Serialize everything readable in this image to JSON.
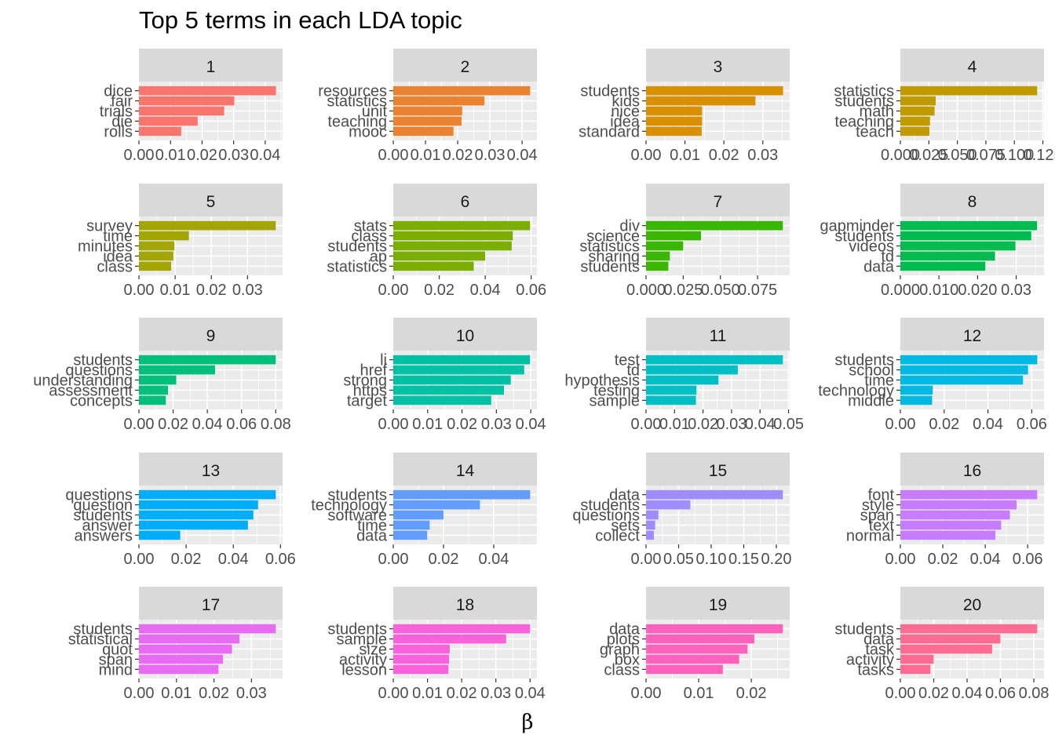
{
  "chart_data": {
    "type": "bar",
    "orientation": "horizontal",
    "title": "Top 5 terms in each LDA topic",
    "xlabel": "β",
    "ylabel": "",
    "grid": true,
    "legend": "none",
    "facets": [
      {
        "topic": "1",
        "color": "#F8766D",
        "terms": [
          "dice",
          "fair",
          "trials",
          "die",
          "rolls"
        ],
        "values": [
          0.0434,
          0.0302,
          0.027,
          0.0186,
          0.0134
        ],
        "xlim": [
          0,
          0.0455
        ],
        "ticks": [
          0,
          0.01,
          0.02,
          0.03,
          0.04
        ],
        "tick_labels": [
          "0.00",
          "0.01",
          "0.02",
          "0.03",
          "0.04"
        ]
      },
      {
        "topic": "2",
        "color": "#EA8331",
        "terms": [
          "resources",
          "statistics",
          "unit",
          "teaching",
          "mooc"
        ],
        "values": [
          0.0425,
          0.0283,
          0.0214,
          0.0212,
          0.0187
        ],
        "xlim": [
          0,
          0.0446
        ],
        "ticks": [
          0,
          0.01,
          0.02,
          0.03,
          0.04
        ],
        "tick_labels": [
          "0.00",
          "0.01",
          "0.02",
          "0.03",
          "0.04"
        ]
      },
      {
        "topic": "3",
        "color": "#D89000",
        "terms": [
          "students",
          "kids",
          "nice",
          "idea",
          "standard"
        ],
        "values": [
          0.0352,
          0.0281,
          0.0144,
          0.0144,
          0.0143
        ],
        "xlim": [
          0,
          0.0369
        ],
        "ticks": [
          0,
          0.01,
          0.02,
          0.03
        ],
        "tick_labels": [
          "0.00",
          "0.01",
          "0.02",
          "0.03"
        ]
      },
      {
        "topic": "4",
        "color": "#C09B00",
        "terms": [
          "statistics",
          "students",
          "math",
          "teaching",
          "teach"
        ],
        "values": [
          0.12,
          0.031,
          0.03,
          0.026,
          0.0255
        ],
        "xlim": [
          0,
          0.126
        ],
        "ticks": [
          0,
          0.025,
          0.05,
          0.075,
          0.1,
          0.125
        ],
        "tick_labels": [
          "0.000",
          "0.025",
          "0.050",
          "0.075",
          "0.100",
          "0.125"
        ]
      },
      {
        "topic": "5",
        "color": "#A3A500",
        "terms": [
          "survey",
          "time",
          "minutes",
          "idea",
          "class"
        ],
        "values": [
          0.0378,
          0.0138,
          0.0098,
          0.0095,
          0.0089
        ],
        "xlim": [
          0,
          0.0397
        ],
        "ticks": [
          0,
          0.01,
          0.02,
          0.03
        ],
        "tick_labels": [
          "0.00",
          "0.01",
          "0.02",
          "0.03"
        ]
      },
      {
        "topic": "6",
        "color": "#7CAE00",
        "terms": [
          "stats",
          "class",
          "students",
          "ap",
          "statistics"
        ],
        "values": [
          0.0595,
          0.052,
          0.0515,
          0.04,
          0.035
        ],
        "xlim": [
          0,
          0.0625
        ],
        "ticks": [
          0,
          0.02,
          0.04,
          0.06
        ],
        "tick_labels": [
          "0.00",
          "0.02",
          "0.04",
          "0.06"
        ]
      },
      {
        "topic": "7",
        "color": "#39B600",
        "terms": [
          "div",
          "science",
          "statistics",
          "sharing",
          "students"
        ],
        "values": [
          0.092,
          0.037,
          0.025,
          0.016,
          0.015
        ],
        "xlim": [
          0,
          0.0966
        ],
        "ticks": [
          0,
          0.025,
          0.05,
          0.075
        ],
        "tick_labels": [
          "0.000",
          "0.025",
          "0.050",
          "0.075"
        ]
      },
      {
        "topic": "8",
        "color": "#00BB4E",
        "terms": [
          "gapminder",
          "students",
          "videos",
          "td",
          "data"
        ],
        "values": [
          0.0354,
          0.0339,
          0.0298,
          0.0245,
          0.022
        ],
        "xlim": [
          0,
          0.0372
        ],
        "ticks": [
          0,
          0.01,
          0.02,
          0.03
        ],
        "tick_labels": [
          "0.000",
          "0.010",
          "0.020",
          "0.03"
        ]
      },
      {
        "topic": "9",
        "color": "#00BF7D",
        "terms": [
          "students",
          "questions",
          "understanding",
          "assessment",
          "concepts"
        ],
        "values": [
          0.08,
          0.0445,
          0.0218,
          0.017,
          0.0157
        ],
        "xlim": [
          0,
          0.084
        ],
        "ticks": [
          0,
          0.02,
          0.04,
          0.06,
          0.08
        ],
        "tick_labels": [
          "0.00",
          "0.02",
          "0.04",
          "0.06",
          "0.08"
        ]
      },
      {
        "topic": "10",
        "color": "#00C1A3",
        "terms": [
          "li",
          "href",
          "strong",
          "https",
          "target"
        ],
        "values": [
          0.0398,
          0.0381,
          0.0342,
          0.0322,
          0.0285
        ],
        "xlim": [
          0,
          0.0418
        ],
        "ticks": [
          0,
          0.01,
          0.02,
          0.03,
          0.04
        ],
        "tick_labels": [
          "0.00",
          "0.01",
          "0.02",
          "0.03",
          "0.04"
        ]
      },
      {
        "topic": "11",
        "color": "#00BFC4",
        "terms": [
          "test",
          "td",
          "hypothesis",
          "testing",
          "sample"
        ],
        "values": [
          0.048,
          0.0322,
          0.0254,
          0.0177,
          0.0175
        ],
        "xlim": [
          0,
          0.0504
        ],
        "ticks": [
          0,
          0.01,
          0.02,
          0.03,
          0.04,
          0.05
        ],
        "tick_labels": [
          "0.00",
          "0.01",
          "0.02",
          "0.03",
          "0.04",
          "0.05"
        ]
      },
      {
        "topic": "12",
        "color": "#00B9E3",
        "terms": [
          "students",
          "school",
          "time",
          "technology",
          "middle"
        ],
        "values": [
          0.0625,
          0.0583,
          0.056,
          0.0148,
          0.0145
        ],
        "xlim": [
          0,
          0.0656
        ],
        "ticks": [
          0,
          0.02,
          0.04,
          0.06
        ],
        "tick_labels": [
          "0.00",
          "0.02",
          "0.04",
          "0.06"
        ]
      },
      {
        "topic": "13",
        "color": "#00ADFA",
        "terms": [
          "questions",
          "question",
          "students",
          "answer",
          "answers"
        ],
        "values": [
          0.058,
          0.0505,
          0.0485,
          0.0462,
          0.0175
        ],
        "xlim": [
          0,
          0.0609
        ],
        "ticks": [
          0,
          0.02,
          0.04,
          0.06
        ],
        "tick_labels": [
          "0.00",
          "0.02",
          "0.04",
          "0.06"
        ]
      },
      {
        "topic": "14",
        "color": "#619CFF",
        "terms": [
          "students",
          "technology",
          "software",
          "time",
          "data"
        ],
        "values": [
          0.0545,
          0.0345,
          0.02,
          0.0145,
          0.0135
        ],
        "xlim": [
          0,
          0.0572
        ],
        "ticks": [
          0,
          0.02,
          0.04
        ],
        "tick_labels": [
          "0.00",
          "0.02",
          "0.04"
        ]
      },
      {
        "topic": "15",
        "color": "#9F8CFF",
        "terms": [
          "data",
          "students",
          "questions",
          "sets",
          "collect"
        ],
        "values": [
          0.21,
          0.068,
          0.019,
          0.014,
          0.012
        ],
        "xlim": [
          0,
          0.2205
        ],
        "ticks": [
          0,
          0.05,
          0.1,
          0.15,
          0.2
        ],
        "tick_labels": [
          "0.00",
          "0.05",
          "0.10",
          "0.15",
          "0.20"
        ]
      },
      {
        "topic": "16",
        "color": "#C77CFF",
        "terms": [
          "font",
          "style",
          "span",
          "text",
          "normal"
        ],
        "values": [
          0.0645,
          0.0548,
          0.0516,
          0.0475,
          0.0448
        ],
        "xlim": [
          0,
          0.0677
        ],
        "ticks": [
          0,
          0.02,
          0.04,
          0.06
        ],
        "tick_labels": [
          "0.00",
          "0.02",
          "0.04",
          "0.06"
        ]
      },
      {
        "topic": "17",
        "color": "#E76BF3",
        "terms": [
          "students",
          "statistical",
          "quot",
          "span",
          "mind"
        ],
        "values": [
          0.0365,
          0.0268,
          0.0248,
          0.0224,
          0.0212
        ],
        "xlim": [
          0,
          0.0383
        ],
        "ticks": [
          0,
          0.01,
          0.02,
          0.03
        ],
        "tick_labels": [
          "0.00",
          "0.01",
          "0.02",
          "0.03"
        ]
      },
      {
        "topic": "18",
        "color": "#FA62DB",
        "terms": [
          "students",
          "sample",
          "size",
          "activity",
          "lesson"
        ],
        "values": [
          0.04,
          0.033,
          0.0165,
          0.0163,
          0.0161
        ],
        "xlim": [
          0,
          0.042
        ],
        "ticks": [
          0,
          0.01,
          0.02,
          0.03,
          0.04
        ],
        "tick_labels": [
          "0.00",
          "0.01",
          "0.02",
          "0.03",
          "0.04"
        ]
      },
      {
        "topic": "19",
        "color": "#FF62BC",
        "terms": [
          "data",
          "plots",
          "graph",
          "box",
          "class"
        ],
        "values": [
          0.026,
          0.0206,
          0.0193,
          0.0177,
          0.0146
        ],
        "xlim": [
          0,
          0.0273
        ],
        "ticks": [
          0,
          0.01,
          0.02
        ],
        "tick_labels": [
          "0.00",
          "0.01",
          "0.02"
        ]
      },
      {
        "topic": "20",
        "color": "#FF6C91",
        "terms": [
          "students",
          "data",
          "task",
          "activity",
          "tasks"
        ],
        "values": [
          0.082,
          0.06,
          0.055,
          0.02,
          0.018
        ],
        "xlim": [
          0,
          0.0861
        ],
        "ticks": [
          0,
          0.02,
          0.04,
          0.06,
          0.08
        ],
        "tick_labels": [
          "0.00",
          "0.02",
          "0.04",
          "0.06",
          "0.08"
        ]
      }
    ]
  }
}
